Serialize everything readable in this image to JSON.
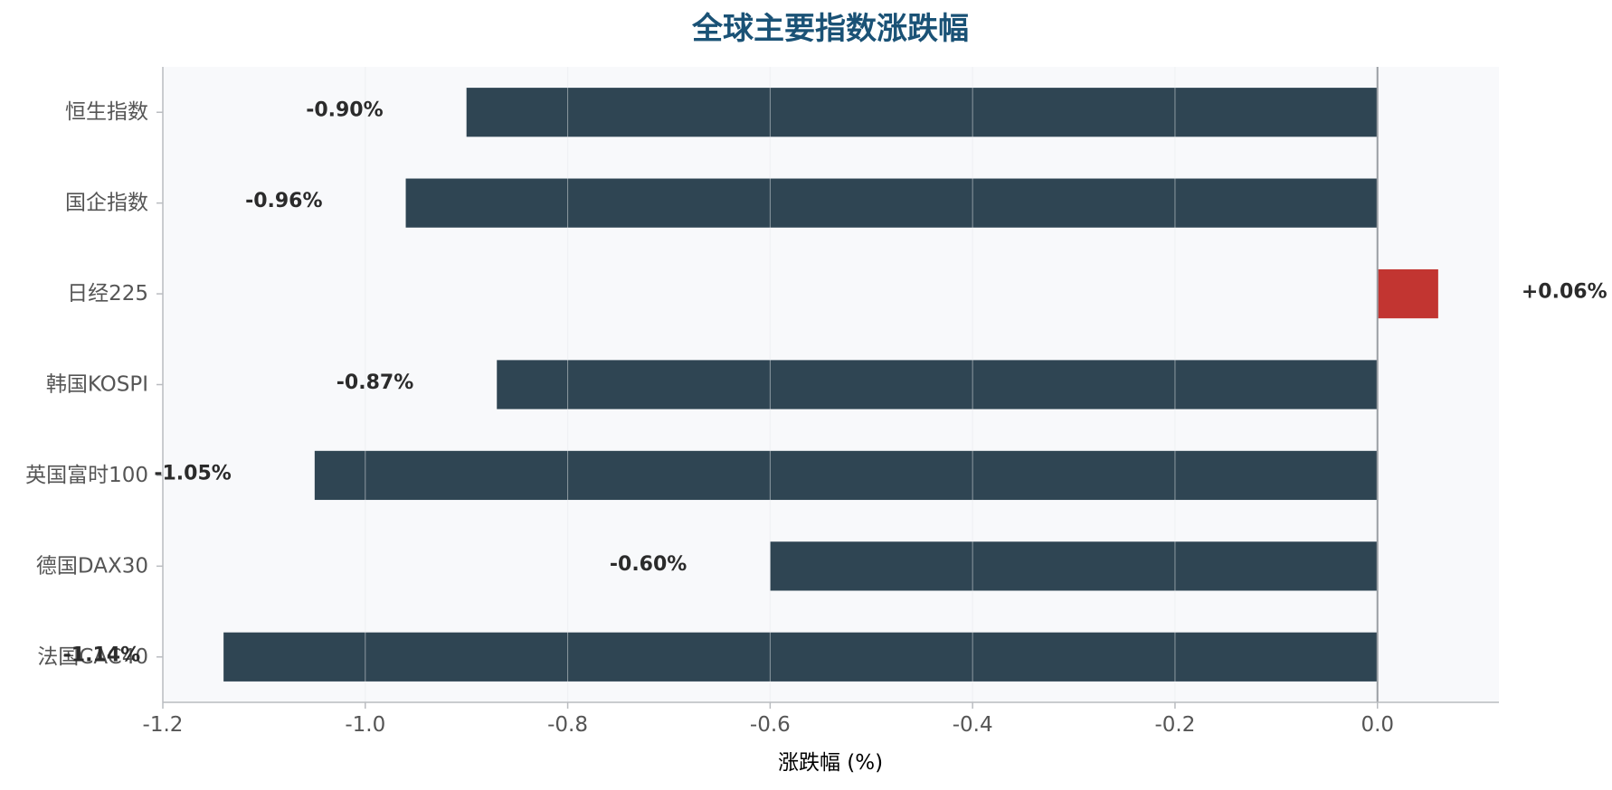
{
  "chart_data": {
    "type": "bar",
    "orientation": "horizontal",
    "title": "全球主要指数涨跌幅",
    "xlabel": "涨跌幅 (%)",
    "ylabel": "",
    "categories": [
      "恒生指数",
      "国企指数",
      "日经225",
      "韩国KOSPI",
      "英国富时100",
      "德国DAX30",
      "法国CAC40"
    ],
    "values": [
      -0.9,
      -0.96,
      0.06,
      -0.87,
      -1.05,
      -0.6,
      -1.14
    ],
    "value_labels": [
      "-0.90%",
      "-0.96%",
      "+0.06%",
      "-0.87%",
      "-1.05%",
      "-0.60%",
      "-1.14%"
    ],
    "xlim": [
      -1.2,
      0.12
    ],
    "xticks": [
      -1.2,
      -1.0,
      -0.8,
      -0.6,
      -0.4,
      -0.2,
      0.0
    ],
    "xtick_labels": [
      "-1.2",
      "-1.0",
      "-0.8",
      "-0.6",
      "-0.4",
      "-0.2",
      "0.0"
    ],
    "grid": "vertical",
    "colors": {
      "negative": "#2f4553",
      "positive": "#c23531",
      "title": "#1a5276",
      "plot_background": "#f8f9fb",
      "grid": "#e3e6ea",
      "axis": "#b9bcc0",
      "zero_line": "#9a9ea3",
      "tick_text": "#555555",
      "label_text": "#2b2b2b"
    }
  }
}
